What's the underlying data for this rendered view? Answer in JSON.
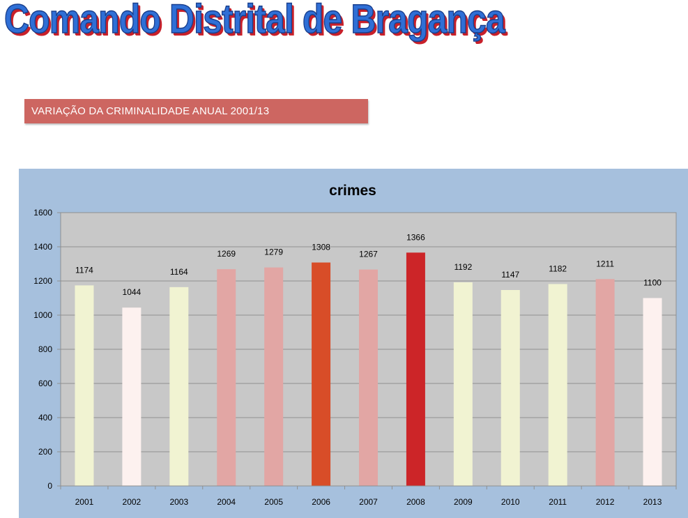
{
  "header": {
    "title": "Comando Distrital de Bragança"
  },
  "banner": {
    "text": "VARIAÇÃO DA CRIMINALIDADE ANUAL 2001/13"
  },
  "colors": {
    "outer_background": "#a6c0dd",
    "plot_background": "#c8c8c8",
    "bar_colors": {
      "pale_yellow": "#f1f3d2",
      "pale_pink": "#fdf1ef",
      "light_red": "#e2a6a4",
      "orange_red": "#d84d28",
      "red": "#cc2528"
    }
  },
  "chart_data": {
    "type": "bar",
    "title": "crimes",
    "xlabel": "",
    "ylabel": "",
    "ylim": [
      0,
      1600
    ],
    "yticks": [
      "0",
      "200",
      "400",
      "600",
      "800",
      "1000",
      "1200",
      "1400",
      "1600"
    ],
    "grid": true,
    "legend": "none",
    "categories": [
      "2001",
      "2002",
      "2003",
      "2004",
      "2005",
      "2006",
      "2007",
      "2008",
      "2009",
      "2010",
      "2011",
      "2012",
      "2013"
    ],
    "values": [
      1174,
      1044,
      1164,
      1269,
      1279,
      1308,
      1267,
      1366,
      1192,
      1147,
      1182,
      1211,
      1100
    ],
    "data_labels": [
      "1174",
      "1044",
      "1164",
      "1269",
      "1279",
      "1308",
      "1267",
      "1366",
      "1192",
      "1147",
      "1182",
      "1211",
      "1100"
    ],
    "bar_colors": [
      "#f1f3d2",
      "#fdf1ef",
      "#f1f3d2",
      "#e2a6a4",
      "#e2a6a4",
      "#d84d28",
      "#e2a6a4",
      "#cc2528",
      "#f1f3d2",
      "#f1f3d2",
      "#f1f3d2",
      "#e2a6a4",
      "#fdf1ef"
    ]
  }
}
